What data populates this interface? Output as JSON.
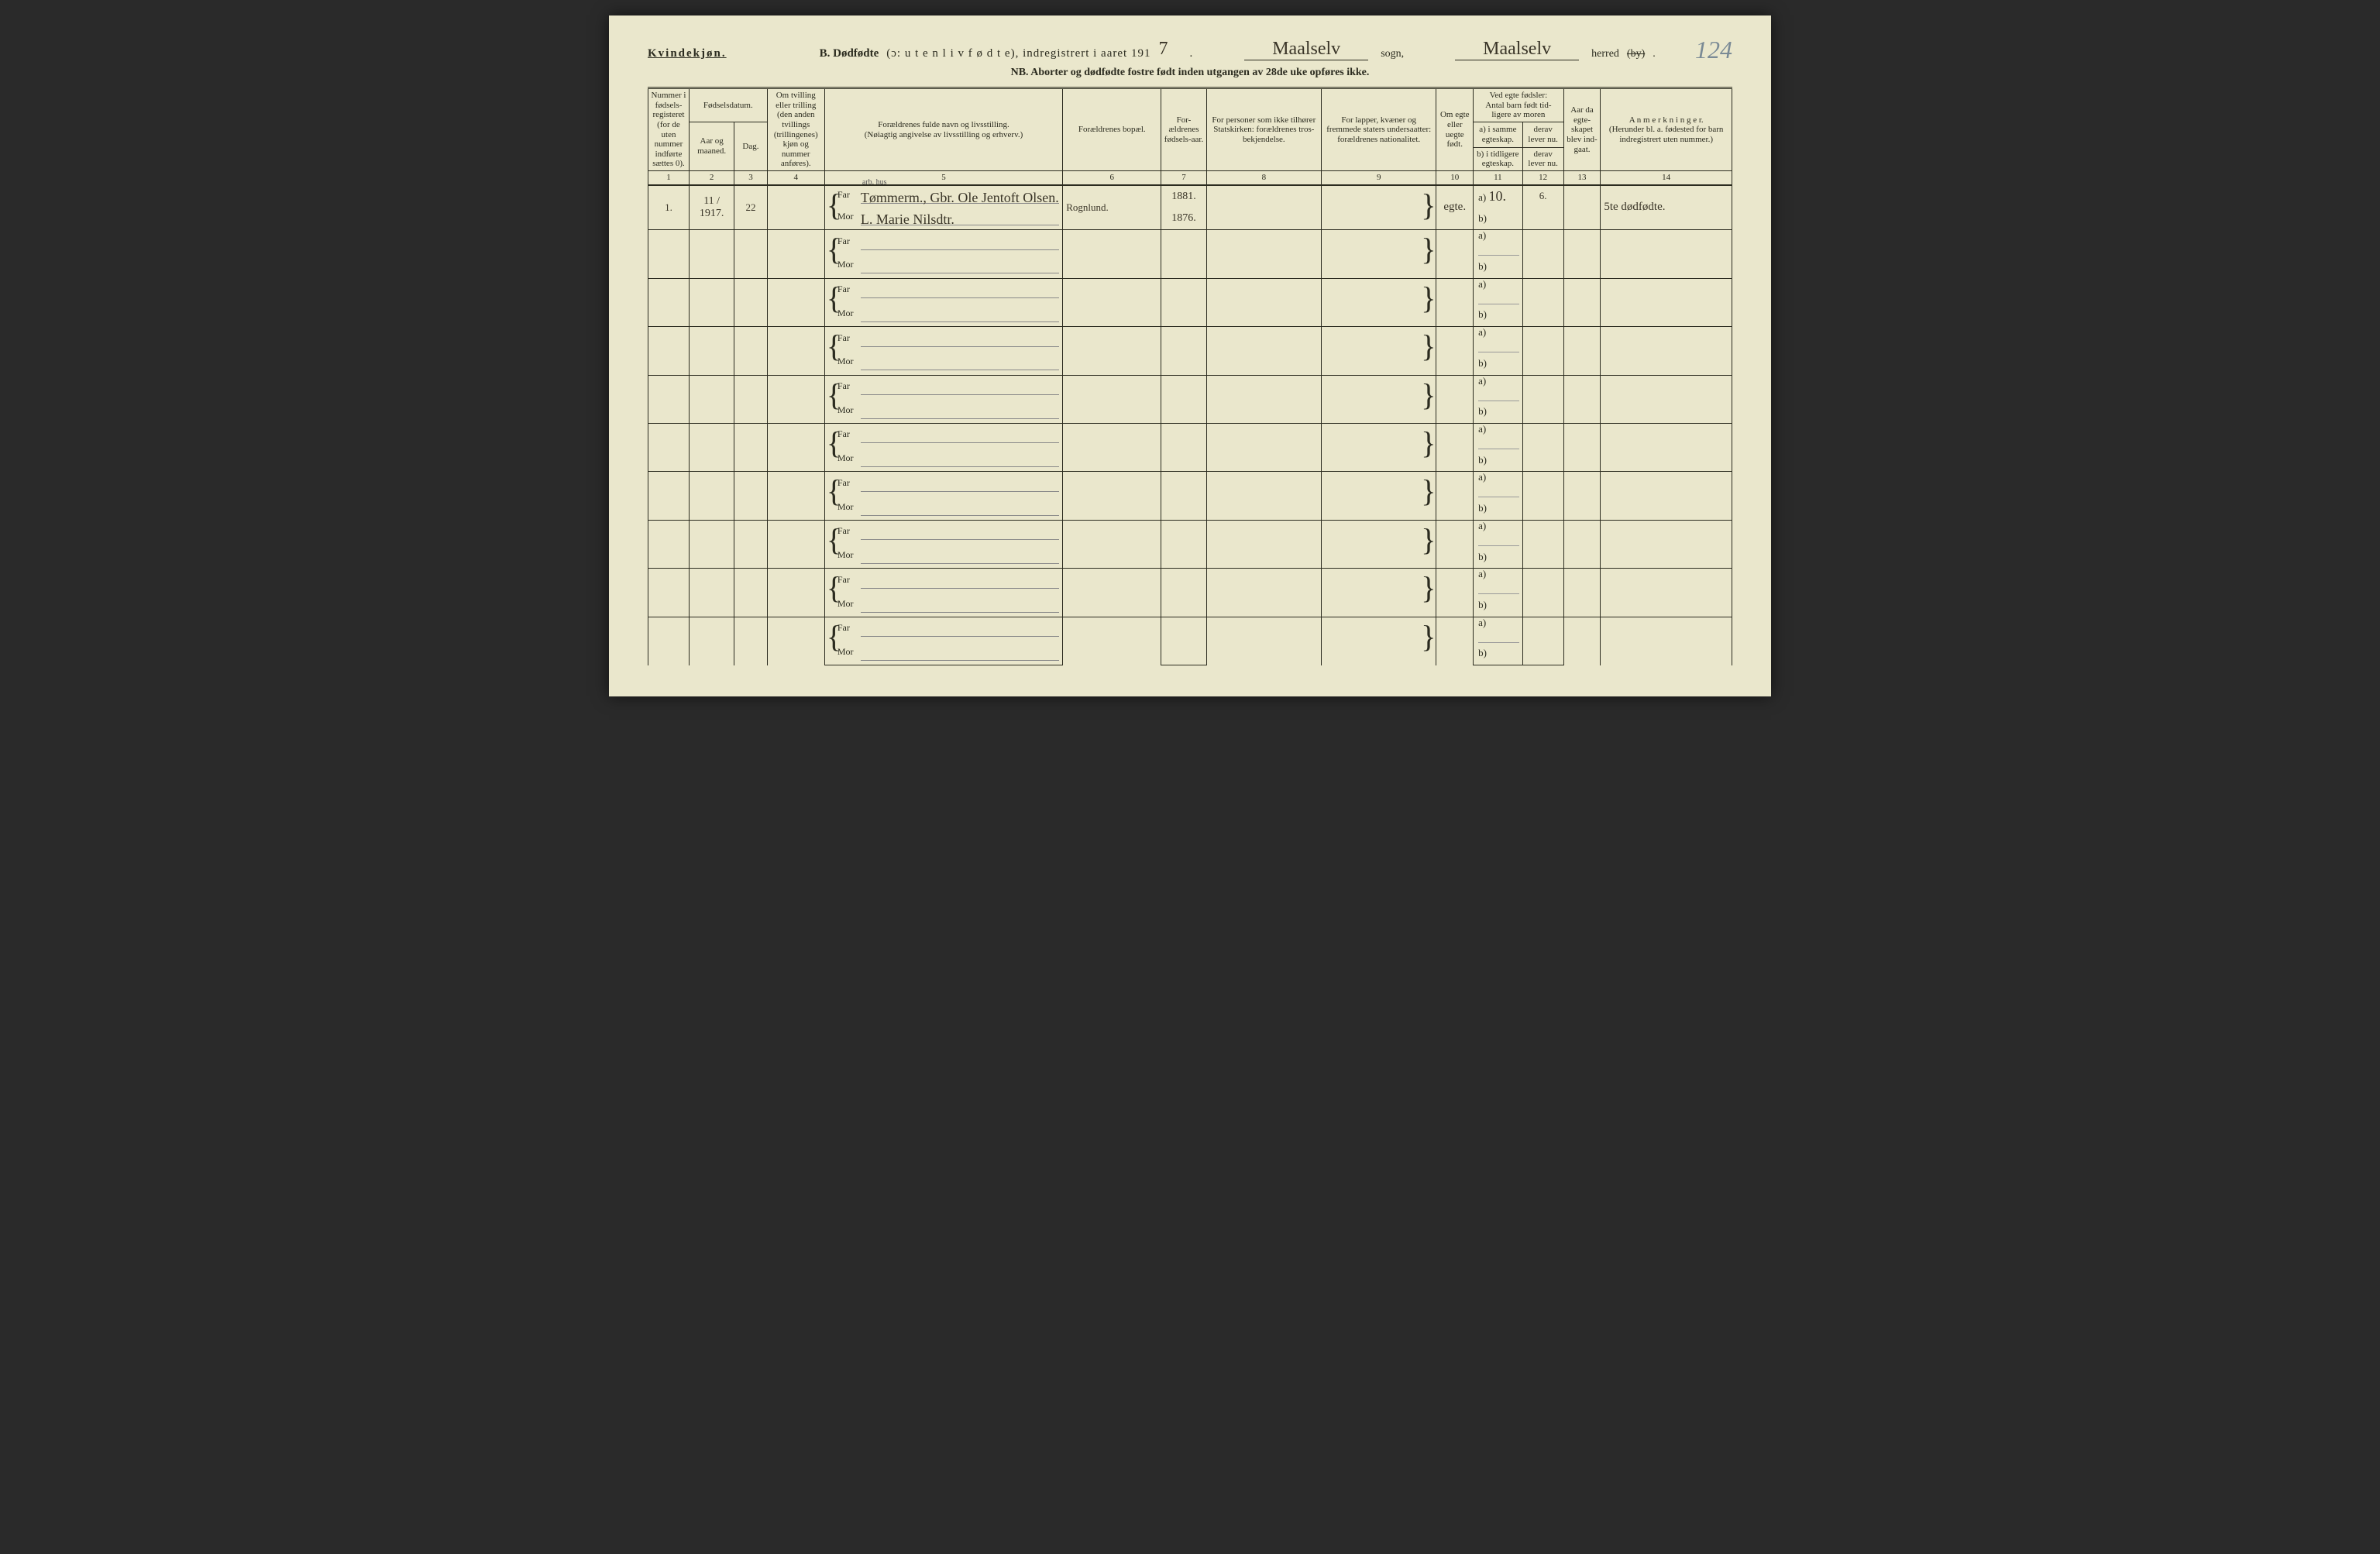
{
  "page_number_hw": "124",
  "header": {
    "kvindekjon": "Kvindekjøn.",
    "title_b": "B.  Dødfødte",
    "title_paren": "(ɔ:  u t e n  l i v  f ø d t e),  indregistrert  i  aaret  191",
    "year_digit_hw": "7",
    "period": ".",
    "sogn_hw": "Maalselv",
    "sogn_lbl": "sogn,",
    "herred_hw": "Maalselv",
    "herred_lbl_pre": "herred",
    "herred_by": "(by)",
    "herred_lbl_post": ".",
    "nb": "NB.   Aborter og dødfødte fostre født inden utgangen av 28de uke opføres ikke."
  },
  "columns": {
    "c1": "Nummer i fødsels-registeret (for de uten nummer indførte sættes 0).",
    "c2g": "Fødselsdatum.",
    "c2": "Aar og maaned.",
    "c3": "Dag.",
    "c4": "Om tvilling eller trilling (den anden tvillings (trillingenes) kjøn og nummer anføres).",
    "c5": "Forældrenes fulde navn og livsstilling.\n(Nøiagtig angivelse av livsstilling og erhverv.)",
    "c6": "Forældrenes bopæl.",
    "c7": "For-ældrenes fødsels-aar.",
    "c8": "For personer som ikke tilhører Statskirken: forældrenes tros-bekjendelse.",
    "c9": "For lapper, kvæner og fremmede staters undersaatter: forældrenes nationalitet.",
    "c10": "Om egte eller uegte født.",
    "c11g": "Ved egte fødsler:\nAntal barn født tid-ligere av moren",
    "c11a": "a) i samme egteskap.",
    "c11b": "b) i tidligere egteskap.",
    "c12a": "derav lever nu.",
    "c12b": "derav lever nu.",
    "c13": "Aar da egte-skapet blev ind-gaat.",
    "c14": "A n m e r k n i n g e r.\n(Herunder bl. a. fødested for barn indregistrert uten nummer.)"
  },
  "colnums": [
    "1",
    "2",
    "3",
    "4",
    "5",
    "6",
    "7",
    "8",
    "9",
    "10",
    "11",
    "12",
    "13",
    "14"
  ],
  "far_label": "Far",
  "mor_label": "Mor",
  "ab_a": "a)",
  "ab_b": "b)",
  "entry1": {
    "num": "1.",
    "year_month": "11 / 1917.",
    "day": "22",
    "far_note_above": "arb. hus",
    "far_name": "Tømmerm., Gbr. Ole Jentoft Olsen.",
    "mor_name": "L. Marie Nilsdtr.",
    "bopael": "Rognlund.",
    "far_birth": "1881.",
    "mor_birth": "1876.",
    "egte": "egte.",
    "col11a": "10.",
    "col12a": "6.",
    "anm": "5te dødfødte."
  },
  "style": {
    "page_bg": "#eae7cc",
    "ink": "#2b2b1f",
    "hw_ink": "#3a3528",
    "pageno_color": "#7a8a95"
  }
}
